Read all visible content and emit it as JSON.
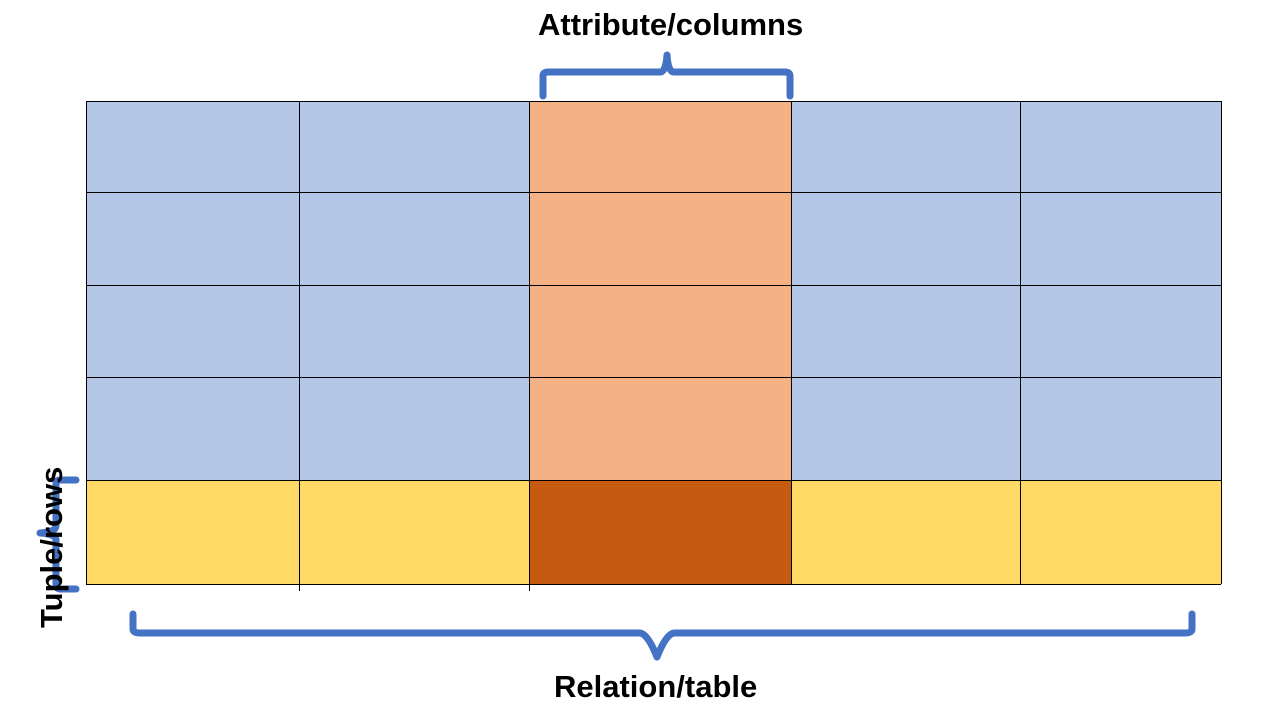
{
  "labels": {
    "attribute": "Attribute/columns",
    "tuple": "Tuple/rows",
    "relation": "Relation/table"
  },
  "colors": {
    "cell_default": "#b4c7e7",
    "column_highlight": "#f4b183",
    "row_highlight": "#ffd966",
    "intersection": "#c55a11",
    "brace": "#4472c4",
    "grid_line": "#000000"
  },
  "table": {
    "rows": 5,
    "columns": 5,
    "highlight_column": 3,
    "highlight_row": 5
  }
}
